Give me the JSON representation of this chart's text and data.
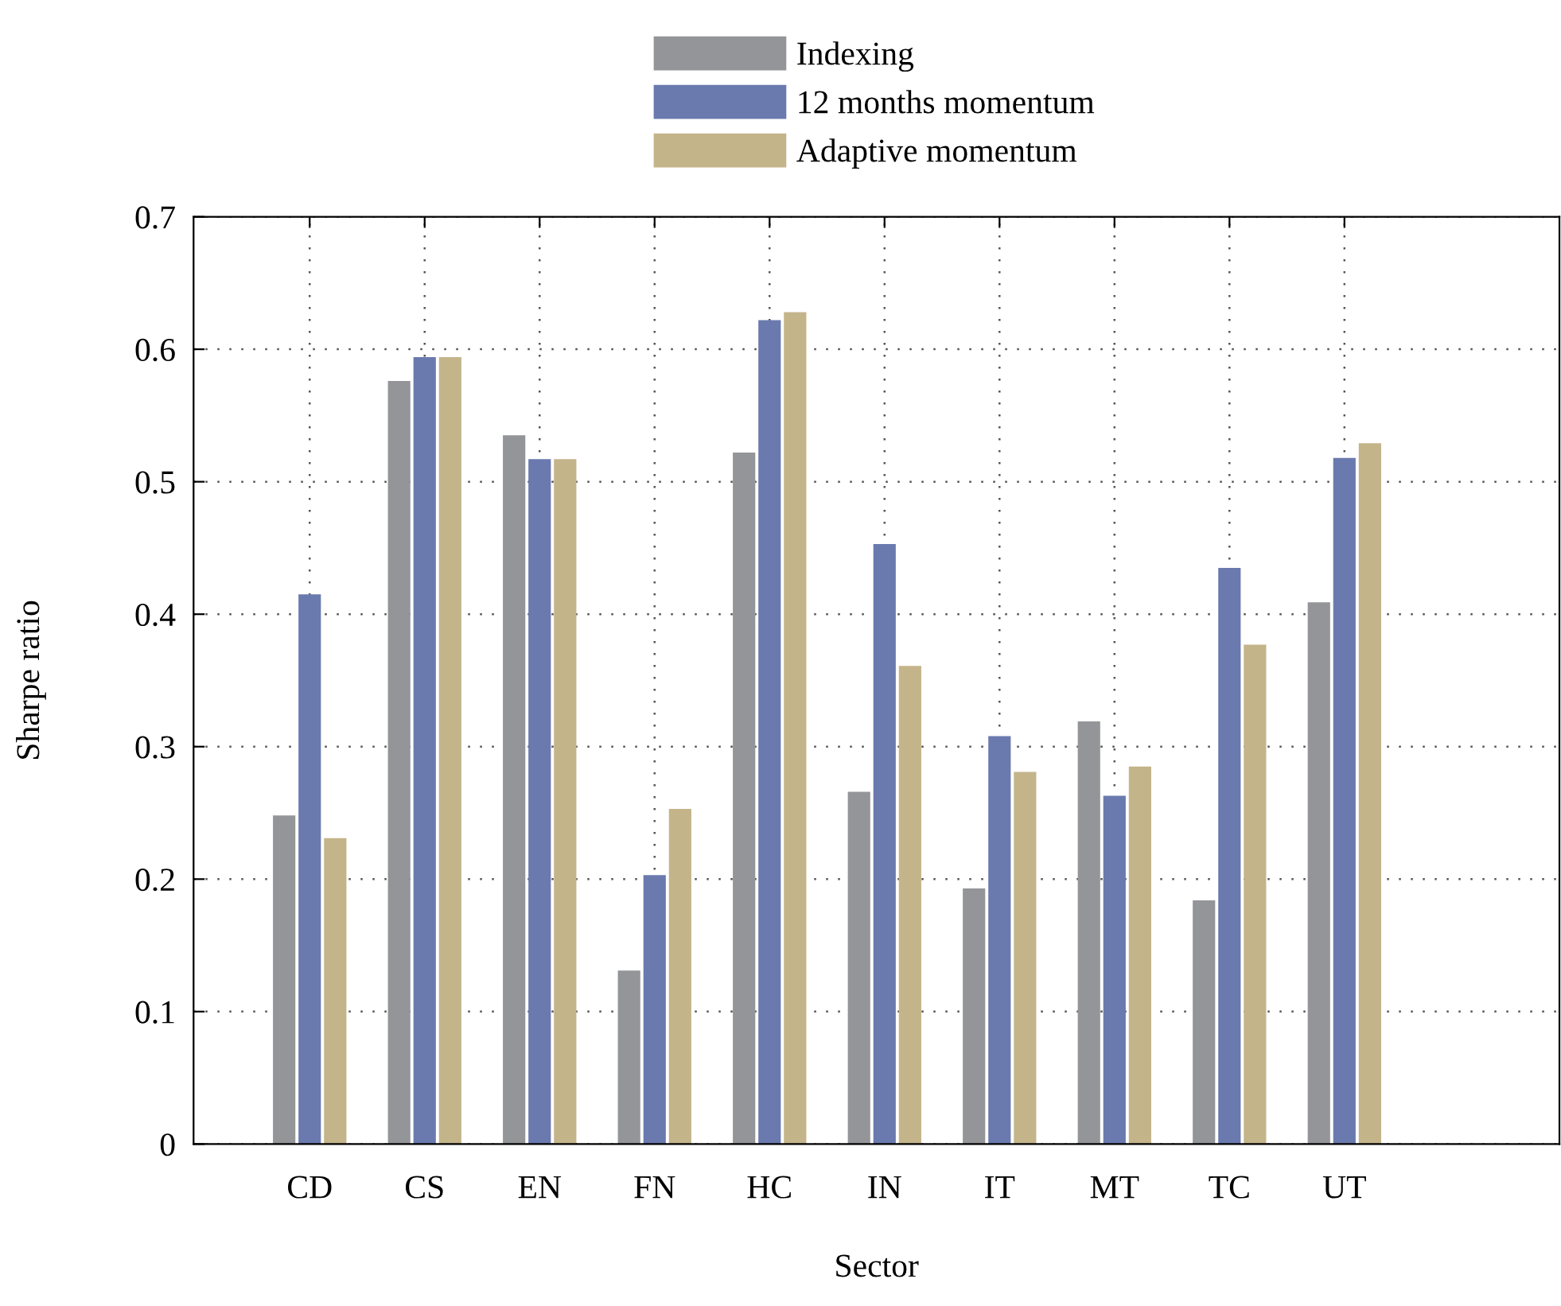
{
  "chart_data": {
    "type": "bar",
    "xlabel": "Sector",
    "ylabel": "Sharpe ratio",
    "categories": [
      "CD",
      "CS",
      "EN",
      "FN",
      "HC",
      "IN",
      "IT",
      "MT",
      "TC",
      "UT"
    ],
    "series": [
      {
        "name": "Indexing",
        "color": "#939598",
        "values": [
          0.248,
          0.576,
          0.535,
          0.131,
          0.522,
          0.266,
          0.193,
          0.319,
          0.184,
          0.409
        ]
      },
      {
        "name": "12 months momentum",
        "color": "#6a7aae",
        "values": [
          0.415,
          0.594,
          0.517,
          0.203,
          0.622,
          0.453,
          0.308,
          0.263,
          0.435,
          0.518
        ]
      },
      {
        "name": "Adaptive momentum",
        "color": "#c4b48a",
        "values": [
          0.231,
          0.594,
          0.517,
          0.253,
          0.628,
          0.361,
          0.281,
          0.285,
          0.377,
          0.529
        ]
      }
    ],
    "ylim": [
      0,
      0.7
    ],
    "yticks": [
      0,
      0.1,
      0.2,
      0.3,
      0.4,
      0.5,
      0.6,
      0.7
    ],
    "grid": true,
    "legend": "top"
  }
}
